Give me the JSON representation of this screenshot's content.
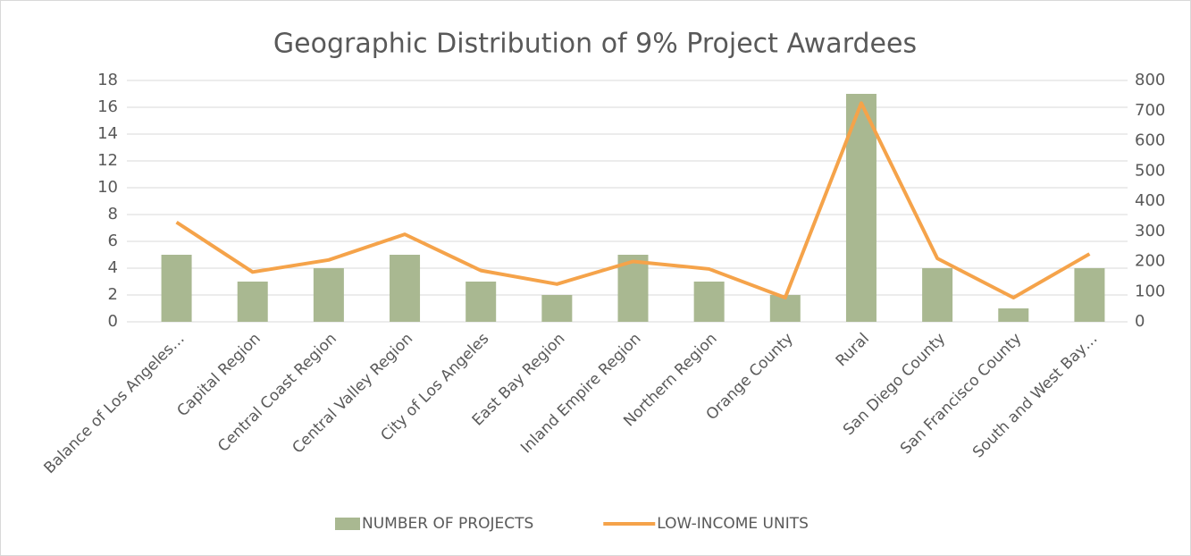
{
  "chart_data": {
    "type": "combo",
    "title": "Geographic Distribution of 9% Project Awardees",
    "categories": [
      "Balance of Los Angeles…",
      "Capital Region",
      "Central Coast Region",
      "Central Valley Region",
      "City of Los Angeles",
      "East Bay Region",
      "Inland Empire Region",
      "Northern Region",
      "Orange County",
      "Rural",
      "San Diego County",
      "San Francisco County",
      "South and West Bay…"
    ],
    "series": [
      {
        "name": "NUMBER OF PROJECTS",
        "type": "bar",
        "color": "#a9b891",
        "values": [
          5,
          3,
          4,
          5,
          3,
          2,
          5,
          3,
          2,
          17,
          4,
          1,
          4
        ]
      },
      {
        "name": "LOW-INCOME UNITS",
        "type": "line",
        "axis": "y2",
        "color": "#f5a34a",
        "values": [
          330,
          165,
          205,
          290,
          170,
          125,
          200,
          175,
          80,
          725,
          210,
          80,
          225
        ]
      }
    ],
    "ylim": [
      0,
      18
    ],
    "yticks": [
      0,
      2,
      4,
      6,
      8,
      10,
      12,
      14,
      16,
      18
    ],
    "y2lim": [
      0,
      800
    ],
    "y2ticks": [
      0,
      100,
      200,
      300,
      400,
      500,
      600,
      700,
      800
    ],
    "grid": true,
    "legend": "bottom"
  }
}
